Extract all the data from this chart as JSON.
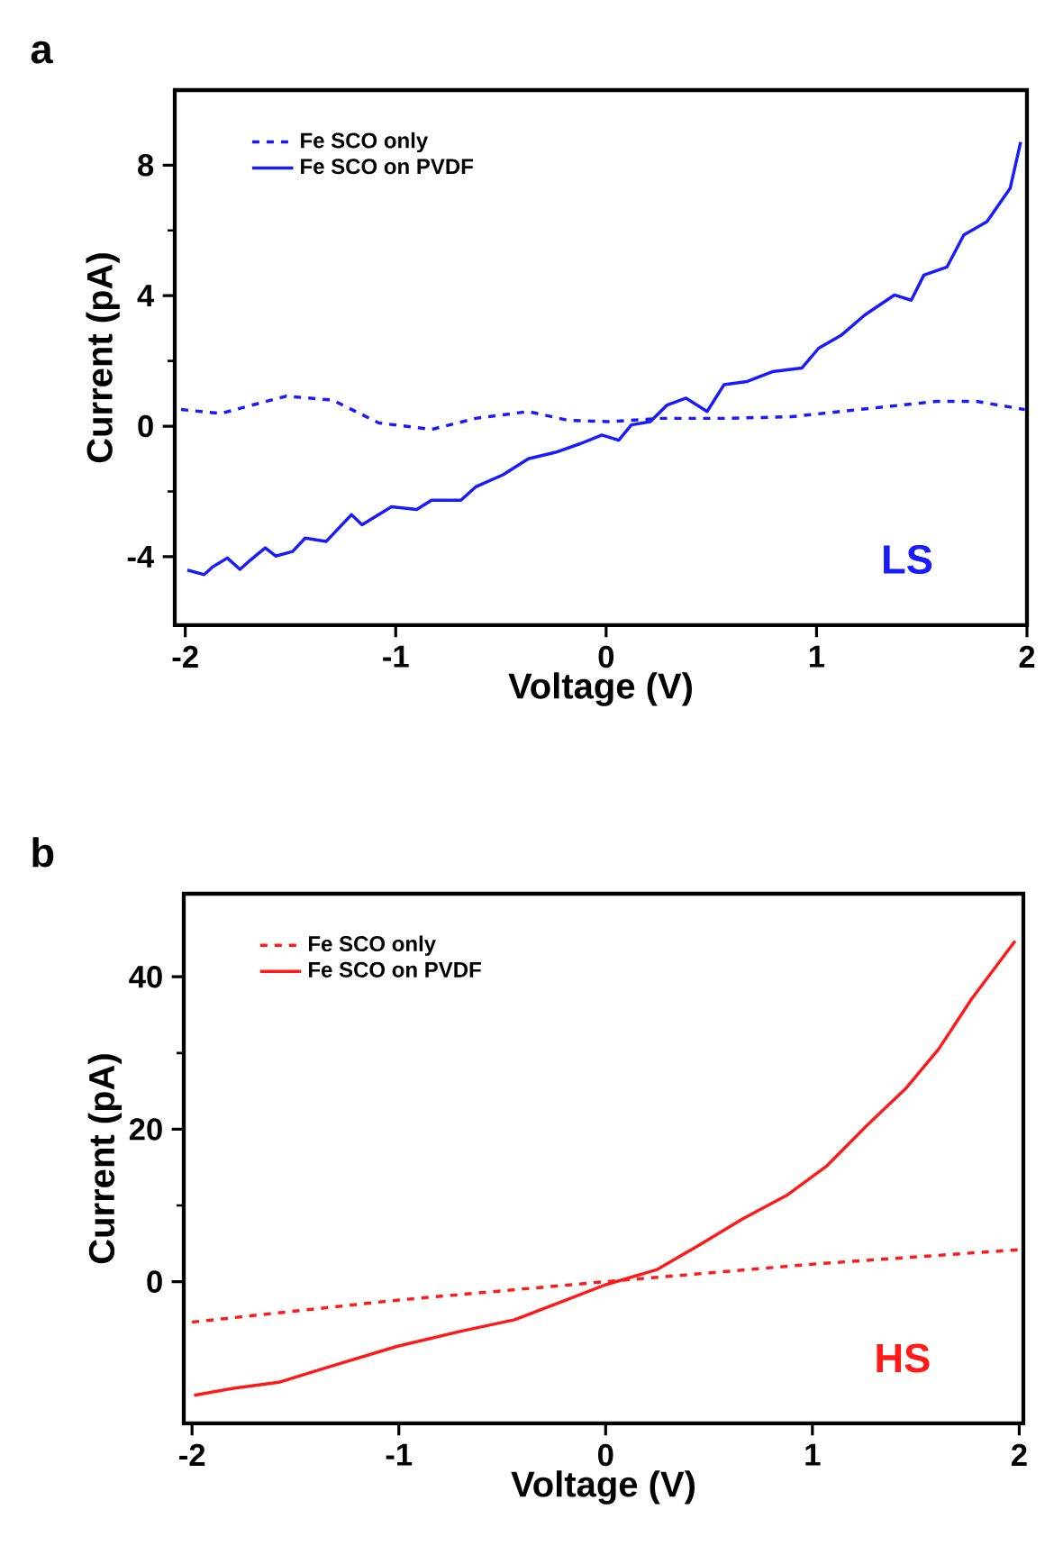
{
  "chart_data": [
    {
      "type": "line",
      "title": "a",
      "xlabel": "Voltage (V)",
      "ylabel": "Current (pA)",
      "annotations": [
        "LS"
      ],
      "legend": "top left",
      "xlim": [
        -2.05,
        2.0
      ],
      "ylim": [
        -6.1,
        10.3
      ],
      "xticks": [
        -2,
        -1,
        0,
        1,
        2
      ],
      "yticks": [
        -4,
        0,
        4,
        8
      ],
      "series": [
        {
          "name": "Fe SCO only",
          "color": "#1a1aff",
          "line_style": "dashed",
          "x": [
            -2.02,
            -1.83,
            -1.68,
            -1.52,
            -1.3,
            -1.08,
            -0.83,
            -0.62,
            -0.37,
            -0.18,
            0.01,
            0.26,
            0.57,
            0.88,
            1.2,
            1.57,
            1.76,
            1.99
          ],
          "values": [
            0.51,
            0.39,
            0.65,
            0.92,
            0.8,
            0.1,
            -0.1,
            0.24,
            0.45,
            0.18,
            0.14,
            0.24,
            0.24,
            0.29,
            0.51,
            0.76,
            0.76,
            0.51
          ]
        },
        {
          "name": "Fe SCO on PVDF",
          "color": "#1a1aff",
          "line_style": "solid",
          "x": [
            -1.99,
            -1.91,
            -1.87,
            -1.8,
            -1.74,
            -1.69,
            -1.62,
            -1.57,
            -1.49,
            -1.43,
            -1.33,
            -1.21,
            -1.16,
            -1.02,
            -0.9,
            -0.83,
            -0.69,
            -0.62,
            -0.49,
            -0.37,
            -0.24,
            -0.12,
            -0.02,
            0.06,
            0.12,
            0.21,
            0.29,
            0.38,
            0.48,
            0.56,
            0.67,
            0.79,
            0.93,
            1.01,
            1.12,
            1.23,
            1.37,
            1.45,
            1.51,
            1.62,
            1.7,
            1.81,
            1.92,
            1.97
          ],
          "values": [
            -4.41,
            -4.55,
            -4.31,
            -4.04,
            -4.39,
            -4.1,
            -3.73,
            -3.98,
            -3.84,
            -3.43,
            -3.53,
            -2.71,
            -3.02,
            -2.47,
            -2.55,
            -2.27,
            -2.27,
            -1.86,
            -1.49,
            -1.0,
            -0.8,
            -0.53,
            -0.27,
            -0.43,
            0.04,
            0.14,
            0.65,
            0.86,
            0.45,
            1.27,
            1.37,
            1.67,
            1.78,
            2.39,
            2.8,
            3.41,
            4.02,
            3.86,
            4.63,
            4.88,
            5.86,
            6.27,
            7.29,
            8.71
          ]
        }
      ]
    },
    {
      "type": "line",
      "title": "b",
      "xlabel": "Voltage (V)",
      "ylabel": "Current (pA)",
      "annotations": [
        "HS"
      ],
      "legend": "top left",
      "xlim": [
        -2.04,
        2.02
      ],
      "ylim": [
        -18.6,
        50.9
      ],
      "xticks": [
        -2,
        -1,
        0,
        1,
        2
      ],
      "yticks": [
        0,
        20,
        40
      ],
      "series": [
        {
          "name": "Fe SCO only",
          "color": "#ff1a1a",
          "line_style": "dashed",
          "x": [
            -2.0,
            -1.0,
            0.0,
            1.0,
            2.0
          ],
          "values": [
            -5.3,
            -2.4,
            0.0,
            2.3,
            4.2
          ]
        },
        {
          "name": "Fe SCO on PVDF",
          "color": "#ff1a1a",
          "line_style": "solid",
          "x": [
            -1.99,
            -1.8,
            -1.58,
            -1.33,
            -1.01,
            -0.7,
            -0.44,
            -0.19,
            0.0,
            0.25,
            0.44,
            0.66,
            0.88,
            1.07,
            1.26,
            1.45,
            1.61,
            1.77,
            1.98
          ],
          "values": [
            -14.9,
            -14.0,
            -13.2,
            -11.1,
            -8.5,
            -6.5,
            -5.0,
            -2.4,
            -0.4,
            1.6,
            4.6,
            8.2,
            11.4,
            15.2,
            20.4,
            25.3,
            30.5,
            37.1,
            44.7
          ]
        }
      ]
    }
  ]
}
